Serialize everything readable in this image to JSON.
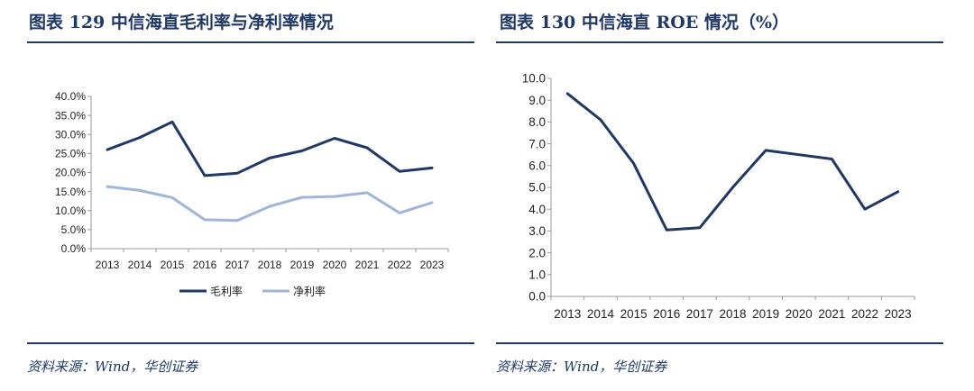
{
  "left": {
    "title": "图表 129 中信海直毛利率与净利率情况",
    "source": "资料来源：Wind，华创证券",
    "chart_data": {
      "type": "line",
      "categories": [
        "2013",
        "2014",
        "2015",
        "2016",
        "2017",
        "2018",
        "2019",
        "2020",
        "2021",
        "2022",
        "2023"
      ],
      "y_ticks": [
        "0.0%",
        "5.0%",
        "10.0%",
        "15.0%",
        "20.0%",
        "25.0%",
        "30.0%",
        "35.0%",
        "40.0%"
      ],
      "ylim": [
        0,
        40
      ],
      "grid": false,
      "legend_position": "bottom",
      "series": [
        {
          "name": "毛利率",
          "color": "#1f3864",
          "values": [
            26.0,
            29.2,
            33.3,
            19.2,
            19.8,
            23.8,
            25.7,
            29.0,
            26.5,
            20.3,
            21.2
          ]
        },
        {
          "name": "净利率",
          "color": "#9fb6d9",
          "values": [
            16.3,
            15.3,
            13.4,
            7.6,
            7.4,
            11.1,
            13.5,
            13.7,
            14.7,
            9.4,
            12.1
          ]
        }
      ]
    }
  },
  "right": {
    "title": "图表 130 中信海直 ROE 情况（%）",
    "source": "资料来源：Wind，华创证券",
    "chart_data": {
      "type": "line",
      "categories": [
        "2013",
        "2014",
        "2015",
        "2016",
        "2017",
        "2018",
        "2019",
        "2020",
        "2021",
        "2022",
        "2023"
      ],
      "y_ticks": [
        "0.0",
        "1.0",
        "2.0",
        "3.0",
        "4.0",
        "5.0",
        "6.0",
        "7.0",
        "8.0",
        "9.0",
        "10.0"
      ],
      "ylim": [
        0,
        10
      ],
      "grid": false,
      "legend_position": "none",
      "series": [
        {
          "color": "#1f3864",
          "values": [
            9.3,
            8.1,
            6.1,
            3.05,
            3.15,
            5.0,
            6.7,
            6.5,
            6.3,
            4.0,
            4.8
          ]
        }
      ]
    }
  }
}
